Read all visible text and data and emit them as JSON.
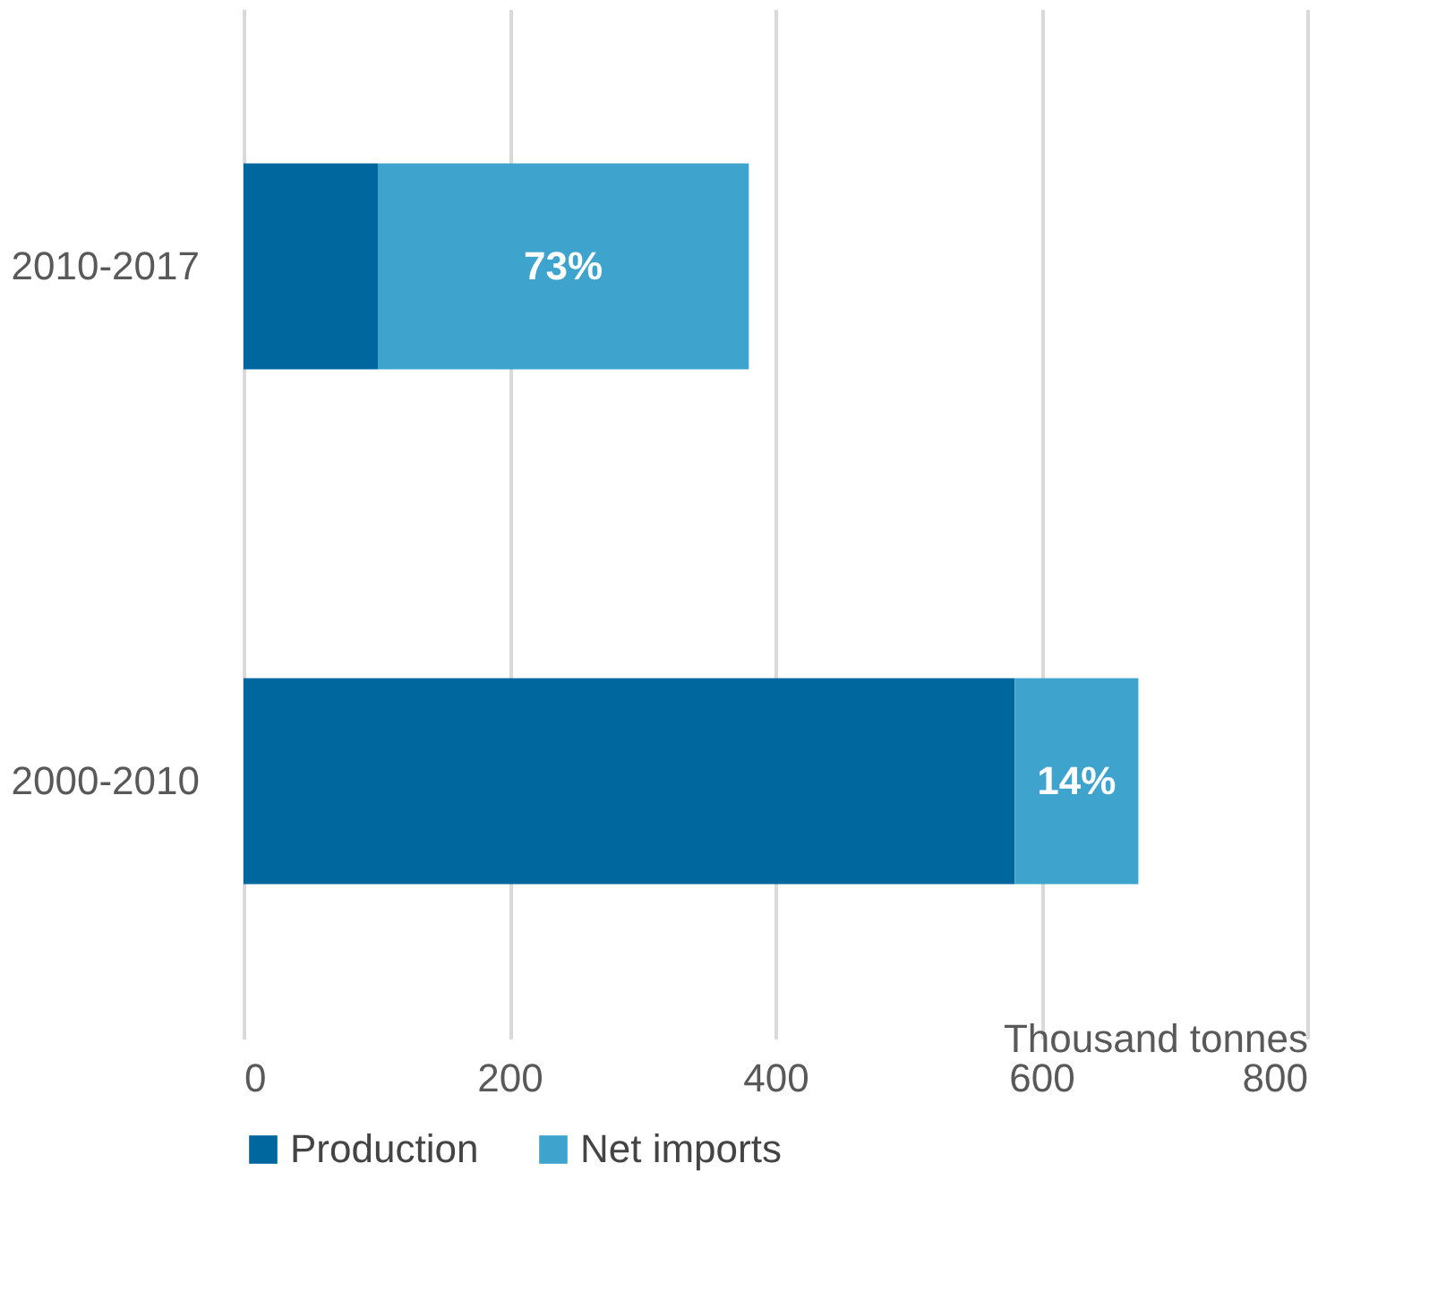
{
  "chart_data": {
    "type": "bar",
    "orientation": "horizontal",
    "stacked": true,
    "categories": [
      "2010-2017",
      "2000-2010"
    ],
    "series": [
      {
        "name": "Production",
        "color": "#00679e",
        "values": [
          101,
          580
        ]
      },
      {
        "name": "Net imports",
        "color": "#3ea4cd",
        "values": [
          279,
          93
        ]
      }
    ],
    "annotations": [
      "73%",
      "14%"
    ],
    "xlabel": "Thousand tonnes",
    "xlim": [
      0,
      800
    ],
    "xticks": [
      0,
      200,
      400,
      600,
      800
    ],
    "grid": "x",
    "legend": "bottom"
  }
}
